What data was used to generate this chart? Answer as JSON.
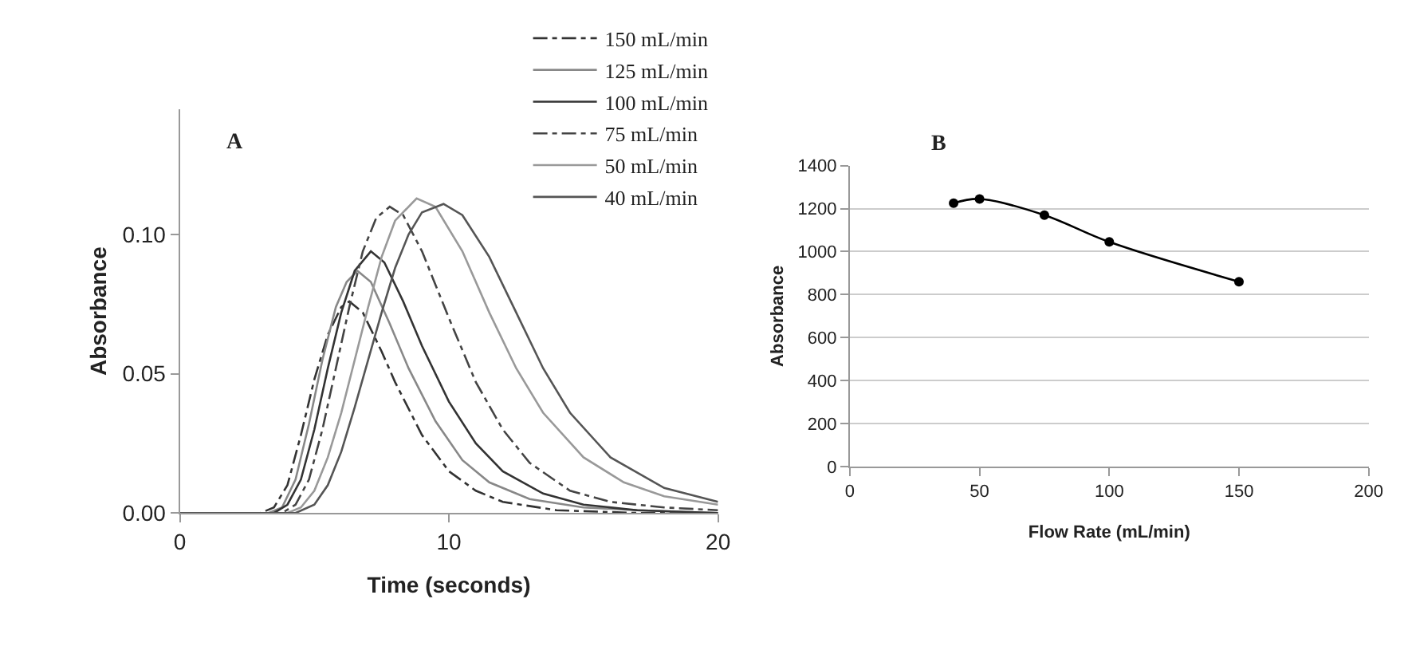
{
  "chart_data": [
    {
      "type": "line",
      "title": "A",
      "xlabel": "Time (seconds)",
      "ylabel": "Absorbance",
      "xlim": [
        0,
        20
      ],
      "xticks": [
        0,
        10,
        20
      ],
      "ylim": [
        0,
        0.145
      ],
      "yticks": [
        {
          "value": 0,
          "label": "0.00"
        },
        {
          "value": 0.05,
          "label": "0.05"
        },
        {
          "value": 0.1,
          "label": "0.10"
        }
      ],
      "grid": false,
      "legend": "top right",
      "marker": "none",
      "series": [
        {
          "name": "150 mL/min",
          "color": "#333333",
          "line_style": "dashed",
          "x": [
            0,
            3,
            3.5,
            4,
            4.5,
            5,
            5.5,
            6,
            6.3,
            6.8,
            7.5,
            8,
            9,
            10,
            11,
            12,
            14,
            17,
            20
          ],
          "values": [
            0,
            0,
            0.002,
            0.01,
            0.028,
            0.048,
            0.064,
            0.074,
            0.076,
            0.072,
            0.058,
            0.047,
            0.028,
            0.015,
            0.008,
            0.004,
            0.001,
            0,
            0
          ]
        },
        {
          "name": "125 mL/min",
          "color": "#888888",
          "line_style": "solid",
          "x": [
            0,
            3.3,
            3.8,
            4.3,
            4.8,
            5.3,
            5.8,
            6.2,
            6.6,
            7.1,
            7.8,
            8.5,
            9.5,
            10.5,
            11.5,
            13,
            15,
            17,
            20
          ],
          "values": [
            0,
            0,
            0.002,
            0.012,
            0.032,
            0.055,
            0.074,
            0.083,
            0.087,
            0.083,
            0.068,
            0.052,
            0.033,
            0.019,
            0.011,
            0.005,
            0.002,
            0.001,
            0
          ]
        },
        {
          "name": "100 mL/min",
          "color": "#333333",
          "line_style": "solid",
          "x": [
            0,
            3.5,
            4,
            4.5,
            5,
            5.5,
            6,
            6.5,
            7.1,
            7.6,
            8.3,
            9,
            10,
            11,
            12,
            13.5,
            15,
            17,
            20
          ],
          "values": [
            0,
            0,
            0.003,
            0.012,
            0.03,
            0.052,
            0.072,
            0.087,
            0.094,
            0.09,
            0.076,
            0.06,
            0.04,
            0.025,
            0.015,
            0.007,
            0.003,
            0.001,
            0
          ]
        },
        {
          "name": "75 mL/min",
          "color": "#444444",
          "line_style": "dashed",
          "x": [
            0,
            3.8,
            4.3,
            4.8,
            5.3,
            5.8,
            6.3,
            6.8,
            7.3,
            7.8,
            8.3,
            9,
            10,
            11,
            12,
            13,
            14.5,
            16,
            18,
            20
          ],
          "values": [
            0,
            0,
            0.003,
            0.012,
            0.03,
            0.052,
            0.074,
            0.094,
            0.106,
            0.11,
            0.107,
            0.094,
            0.07,
            0.047,
            0.03,
            0.018,
            0.008,
            0.004,
            0.002,
            0.001
          ]
        },
        {
          "name": "50 mL/min",
          "color": "#999999",
          "line_style": "solid",
          "x": [
            0,
            4,
            4.5,
            5,
            5.5,
            6,
            6.5,
            7,
            7.5,
            8,
            8.8,
            9.5,
            10.5,
            11.5,
            12.5,
            13.5,
            15,
            16.5,
            18,
            20
          ],
          "values": [
            0,
            0,
            0.002,
            0.008,
            0.02,
            0.036,
            0.055,
            0.074,
            0.092,
            0.105,
            0.113,
            0.11,
            0.094,
            0.072,
            0.052,
            0.036,
            0.02,
            0.011,
            0.006,
            0.003
          ]
        },
        {
          "name": "40 mL/min",
          "color": "#555555",
          "line_style": "solid",
          "x": [
            0,
            4.3,
            5,
            5.5,
            6,
            6.5,
            7,
            7.5,
            8,
            8.5,
            9,
            9.8,
            10.5,
            11.5,
            12.5,
            13.5,
            14.5,
            16,
            18,
            20
          ],
          "values": [
            0,
            0,
            0.003,
            0.01,
            0.022,
            0.038,
            0.055,
            0.072,
            0.088,
            0.1,
            0.108,
            0.111,
            0.107,
            0.092,
            0.072,
            0.052,
            0.036,
            0.02,
            0.009,
            0.004
          ]
        }
      ]
    },
    {
      "type": "line",
      "title": "B",
      "xlabel": "Flow Rate (mL/min)",
      "ylabel": "Absorbance",
      "xlim": [
        0,
        200
      ],
      "xticks": [
        0,
        50,
        100,
        150,
        200
      ],
      "ylim": [
        0,
        1400
      ],
      "yticks": [
        0,
        200,
        400,
        600,
        800,
        1000,
        1200,
        1400
      ],
      "grid": "y",
      "legend": false,
      "marker": "circle",
      "series": [
        {
          "color": "#000000",
          "x": [
            40,
            50,
            75,
            100,
            150
          ],
          "values": [
            1225,
            1245,
            1170,
            1045,
            860
          ]
        }
      ]
    }
  ]
}
